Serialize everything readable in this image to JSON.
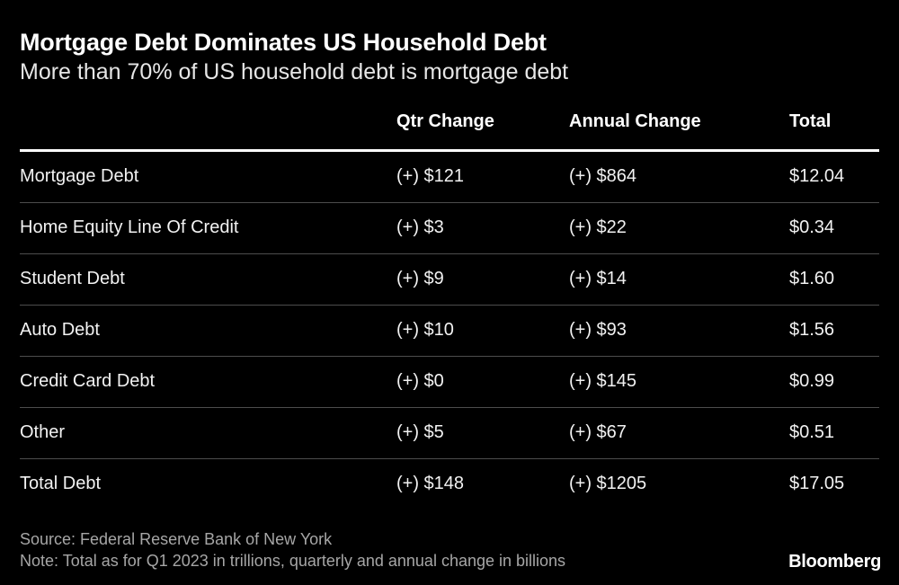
{
  "title": "Mortgage Debt Dominates US Household Debt",
  "subtitle": "More than 70% of US household debt is mortgage debt",
  "chart_data": {
    "type": "table",
    "columns": [
      "",
      "Qtr Change",
      "Annual Change",
      "Total"
    ],
    "rows": [
      [
        "Mortgage Debt",
        "(+) $121",
        "(+) $864",
        "$12.04"
      ],
      [
        "Home Equity Line Of Credit",
        "(+) $3",
        "(+) $22",
        "$0.34"
      ],
      [
        "Student Debt",
        "(+) $9",
        "(+) $14",
        "$1.60"
      ],
      [
        "Auto Debt",
        "(+) $10",
        "(+) $93",
        "$1.56"
      ],
      [
        "Credit Card Debt",
        "(+) $0",
        "(+) $145",
        "$0.99"
      ],
      [
        "Other",
        "(+) $5",
        "(+) $67",
        "$0.51"
      ],
      [
        "Total Debt",
        "(+) $148",
        "(+) $1205",
        "$17.05"
      ]
    ]
  },
  "footer": {
    "source": "Source: Federal Reserve Bank of New York",
    "note": "Note: Total as for Q1 2023 in trillions, quarterly and annual change in billions"
  },
  "logo": "Bloomberg"
}
